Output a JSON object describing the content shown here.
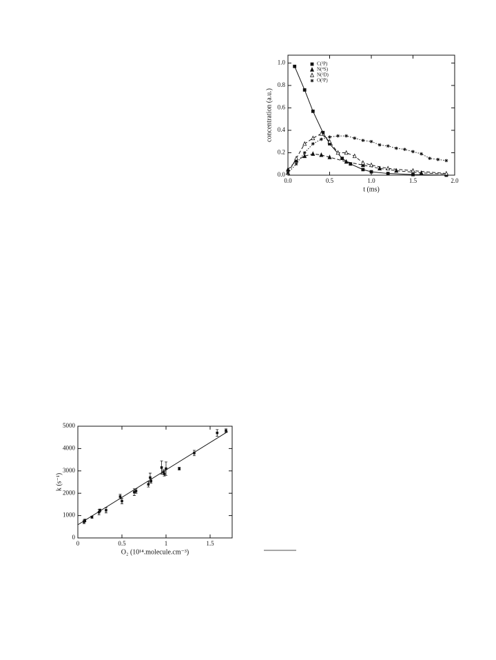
{
  "chart_data": [
    {
      "type": "line",
      "x_label": "t (ms)",
      "y_label": "concentration  (a.u.)",
      "xlim": [
        0,
        2
      ],
      "ylim": [
        0,
        1.07
      ],
      "xticks": [
        {
          "value": 0,
          "label": "0.0"
        },
        0.5,
        {
          "value": 1,
          "label": "1.0"
        },
        1.5,
        {
          "value": 2,
          "label": "2.0"
        }
      ],
      "yticks": [
        {
          "value": 0,
          "label": "0.0"
        },
        0.2,
        0.4,
        0.6,
        0.8,
        {
          "value": 1,
          "label": "1.0"
        }
      ],
      "legend": "top-left",
      "series": [
        {
          "name": "C(³P)",
          "color": "#111111",
          "dash": "solid",
          "marker": "square",
          "x": [
            0.08,
            0.2,
            0.3,
            0.42,
            0.5,
            0.65,
            0.75,
            0.9,
            1.0,
            1.2,
            1.5,
            1.9
          ],
          "values": [
            0.97,
            0.76,
            0.57,
            0.38,
            0.28,
            0.15,
            0.1,
            0.05,
            0.03,
            0.015,
            0.005,
            0.0
          ]
        },
        {
          "name": "N(⁴S)",
          "color": "#111111",
          "dash": "dashed",
          "marker": "triangle",
          "x": [
            0.0,
            0.1,
            0.2,
            0.3,
            0.4,
            0.5,
            0.7,
            0.9,
            1.1,
            1.3,
            1.6,
            1.9
          ],
          "values": [
            0.05,
            0.13,
            0.17,
            0.19,
            0.18,
            0.16,
            0.12,
            0.09,
            0.06,
            0.04,
            0.02,
            0.01
          ]
        },
        {
          "name": "N(²D)",
          "color": "#111111",
          "dash": "dashed",
          "marker": "triangle-open",
          "x": [
            0.0,
            0.1,
            0.2,
            0.3,
            0.4,
            0.5,
            0.6,
            0.7,
            0.8,
            0.9,
            1.0,
            1.2,
            1.5,
            1.9
          ],
          "values": [
            0.02,
            0.15,
            0.28,
            0.33,
            0.37,
            0.3,
            0.2,
            0.2,
            0.17,
            0.11,
            0.09,
            0.06,
            0.04,
            0.015
          ]
        },
        {
          "name": "O(³P)",
          "color": "#111111",
          "dash": "dotted",
          "marker": "star",
          "x": [
            0.0,
            0.1,
            0.2,
            0.3,
            0.4,
            0.5,
            0.6,
            0.7,
            0.8,
            0.9,
            1.0,
            1.1,
            1.2,
            1.3,
            1.4,
            1.5,
            1.6,
            1.7,
            1.8,
            1.9
          ],
          "values": [
            0.02,
            0.1,
            0.2,
            0.28,
            0.32,
            0.34,
            0.35,
            0.35,
            0.33,
            0.31,
            0.3,
            0.27,
            0.26,
            0.24,
            0.23,
            0.21,
            0.19,
            0.15,
            0.14,
            0.13
          ]
        }
      ]
    },
    {
      "type": "scatter",
      "x_label": "O₂ (10¹⁴.molecule.cm⁻³)",
      "y_label": "k (s⁻¹)",
      "xlim": [
        0,
        1.75
      ],
      "ylim": [
        0,
        5000
      ],
      "xticks": [
        0,
        0.5,
        1,
        1.5
      ],
      "yticks": [
        0,
        1000,
        2000,
        3000,
        4000,
        5000
      ],
      "color": "#111111",
      "x": [
        0.07,
        0.08,
        0.16,
        0.24,
        0.25,
        0.32,
        0.48,
        0.5,
        0.64,
        0.66,
        0.8,
        0.82,
        0.83,
        0.95,
        0.97,
        0.98,
        1.0,
        1.15,
        1.32,
        1.58,
        1.68
      ],
      "values": [
        720,
        780,
        930,
        1150,
        1230,
        1240,
        1850,
        1650,
        2050,
        2100,
        2400,
        2700,
        2550,
        3150,
        2950,
        2870,
        3100,
        3100,
        3800,
        4700,
        4800
      ],
      "errors": [
        80,
        60,
        50,
        120,
        60,
        120,
        100,
        120,
        150,
        100,
        120,
        200,
        100,
        300,
        100,
        100,
        300,
        60,
        120,
        150,
        80
      ],
      "fit": {
        "x": [
          0,
          1.7
        ],
        "values": [
          590,
          4760
        ]
      }
    }
  ]
}
